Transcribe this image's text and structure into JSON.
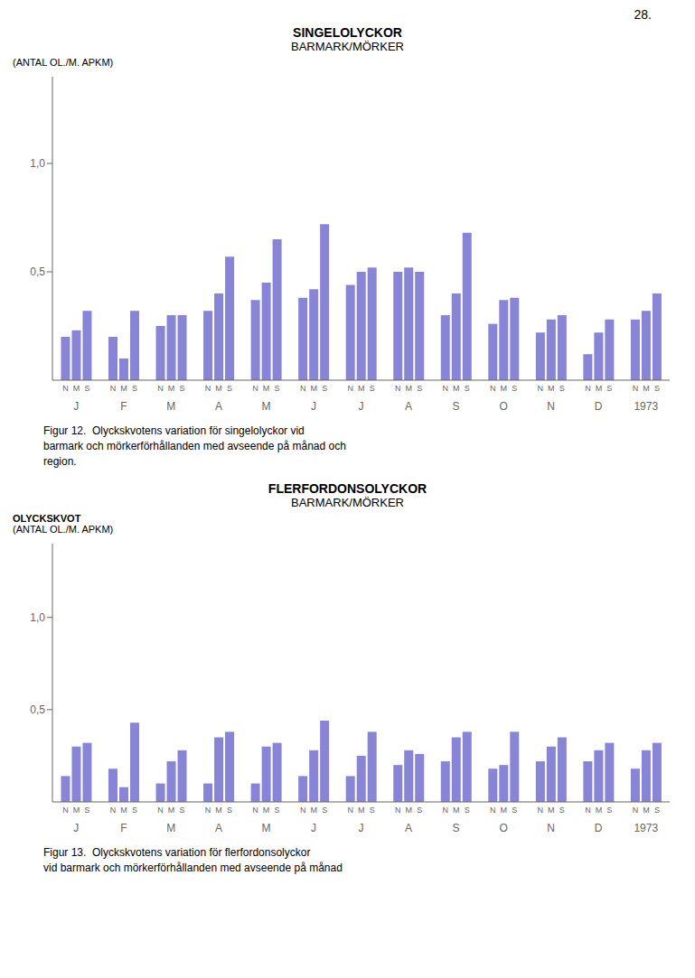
{
  "chart_data": [
    {
      "type": "bar",
      "title": "SINGELOLYCKOR",
      "subtitle": "BARMARK/MÖRKER",
      "y_label": "(ANTAL OL./M. APKM)",
      "annotations": [
        "28."
      ],
      "caption": [
        "Figur 12.  Olyckskvotens variation för singelolyckor vid",
        "barmark och mörkerförhållanden med avseende på månad och",
        "region."
      ],
      "categories": [
        "J",
        "F",
        "M",
        "A",
        "M",
        "J",
        "J",
        "A",
        "S",
        "O",
        "N",
        "D",
        "1973"
      ],
      "color": "#8884d8",
      "series": [
        {
          "name": "N",
          "values": [
            0.2,
            0.2,
            0.25,
            0.32,
            0.37,
            0.38,
            0.44,
            0.5,
            0.3,
            0.26,
            0.22,
            0.12,
            0.28
          ]
        },
        {
          "name": "M",
          "values": [
            0.23,
            0.1,
            0.3,
            0.4,
            0.45,
            0.42,
            0.5,
            0.52,
            0.4,
            0.37,
            0.28,
            0.22,
            0.32
          ]
        },
        {
          "name": "S",
          "values": [
            0.32,
            0.32,
            0.3,
            0.57,
            0.65,
            0.72,
            0.52,
            0.5,
            0.68,
            0.38,
            0.3,
            0.28,
            0.4
          ]
        }
      ],
      "ylim": [
        0,
        1.4
      ],
      "yticks": [
        {
          "value": 0.5,
          "label": "0,5"
        },
        {
          "value": 1.0,
          "label": "1,0"
        }
      ]
    },
    {
      "type": "bar",
      "title": "FLERFORDONSOLYCKOR",
      "subtitle": "BARMARK/MÖRKER",
      "y_label": [
        "OLYCKSKVOT",
        "(ANTAL OL./M. APKM)"
      ],
      "caption": [
        "Figur 13.  Olyckskvotens variation för flerfordonsolyckor",
        "vid barmark och mörkerförhållanden med avseende på månad"
      ],
      "categories": [
        "J",
        "F",
        "M",
        "A",
        "M",
        "J",
        "J",
        "A",
        "S",
        "O",
        "N",
        "D",
        "1973"
      ],
      "color": "#8884d8",
      "series": [
        {
          "name": "N",
          "values": [
            0.14,
            0.18,
            0.1,
            0.1,
            0.1,
            0.14,
            0.14,
            0.2,
            0.22,
            0.18,
            0.22,
            0.22,
            0.18
          ]
        },
        {
          "name": "M",
          "values": [
            0.3,
            0.08,
            0.22,
            0.35,
            0.3,
            0.28,
            0.25,
            0.28,
            0.35,
            0.2,
            0.3,
            0.28,
            0.28
          ]
        },
        {
          "name": "S",
          "values": [
            0.32,
            0.43,
            0.28,
            0.38,
            0.32,
            0.44,
            0.38,
            0.26,
            0.38,
            0.38,
            0.35,
            0.32,
            0.32
          ]
        }
      ],
      "ylim": [
        0,
        1.4
      ],
      "yticks": [
        {
          "value": 0.5,
          "label": "0,5"
        },
        {
          "value": 1.0,
          "label": "1,0"
        }
      ]
    }
  ]
}
